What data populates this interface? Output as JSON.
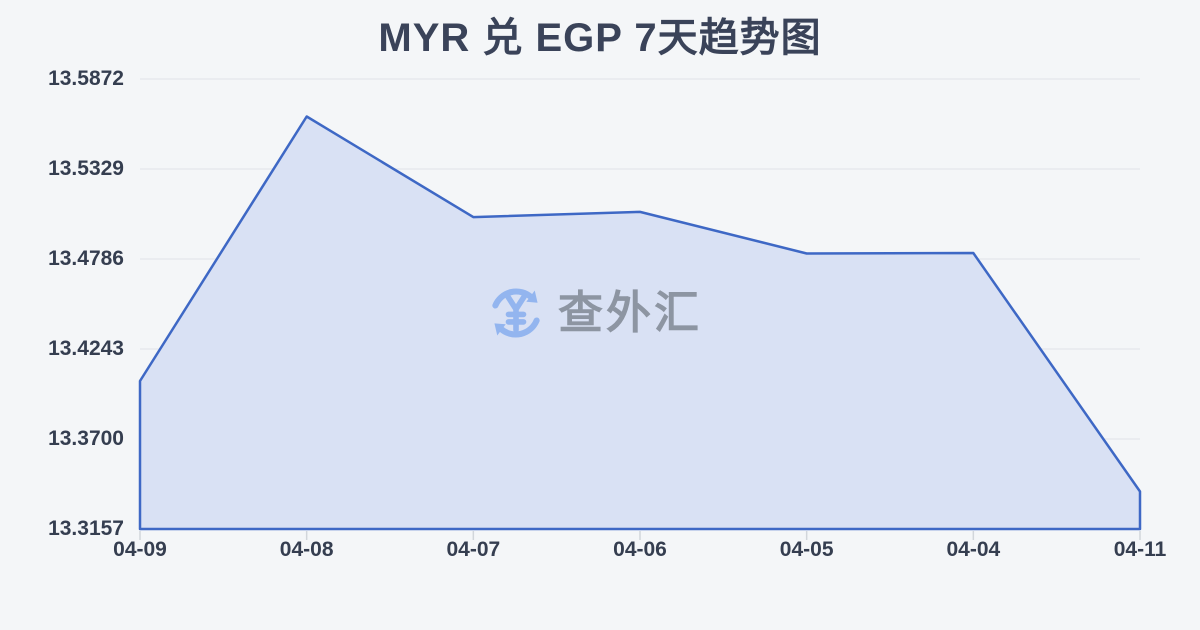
{
  "watermark": {
    "text": "查外汇",
    "icon": "currency-exchange-icon"
  },
  "colors": {
    "background": "#f4f6f8",
    "title_text": "#3a4359",
    "axis_text": "#353e50",
    "line": "#3e68c5",
    "fill": "#d9e1f4",
    "grid": "#e6e9ed",
    "tick": "#d2d6db",
    "watermark_text": "#8d95a2",
    "watermark_icon": "#93b5ef"
  },
  "chart_data": {
    "type": "area",
    "title": "MYR 兑 EGP 7天趋势图",
    "categories": [
      "04-09",
      "04-08",
      "04-07",
      "04-06",
      "04-05",
      "04-04",
      "04-11"
    ],
    "values": [
      13.405,
      13.5646,
      13.5039,
      13.507,
      13.4819,
      13.4822,
      13.3383
    ],
    "y_ticks": [
      "13.5872",
      "13.5329",
      "13.4786",
      "13.4243",
      "13.3700",
      "13.3157"
    ],
    "ylim": [
      13.3157,
      13.5872
    ],
    "xlabel": "",
    "ylabel": "",
    "grid": true,
    "legend": "none"
  }
}
